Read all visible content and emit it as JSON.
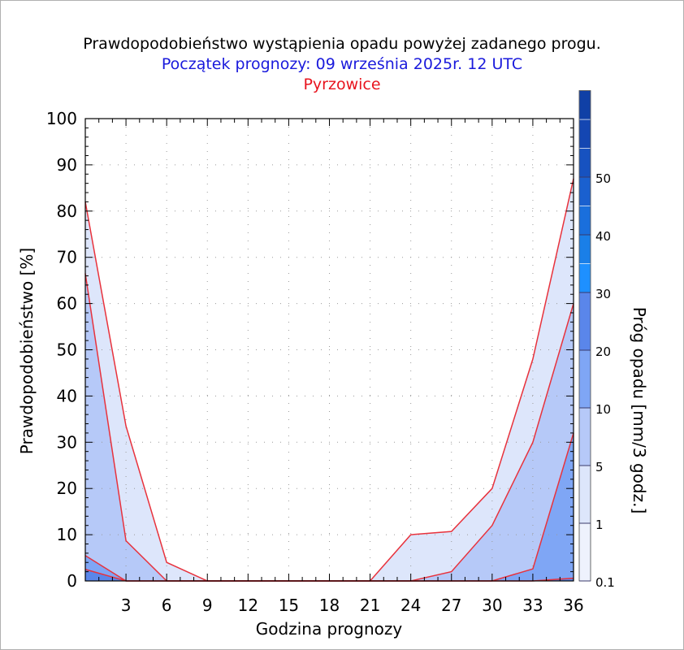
{
  "titles": {
    "line1": "Prawdopodobieństwo wystąpienia opadu powyżej zadanego progu.",
    "line2": "Początek prognozy: 09 września 2025r. 12 UTC",
    "line3": "Pyrzowice"
  },
  "chart_data": {
    "type": "area",
    "xlabel": "Godzina prognozy",
    "ylabel": "Prawdopodobieństwo [%]",
    "colorbar_label": "Próg opadu [mm/3 godz.]",
    "xlim": [
      0,
      36
    ],
    "ylim": [
      0,
      100
    ],
    "x": [
      0,
      3,
      6,
      9,
      12,
      15,
      18,
      21,
      24,
      27,
      30,
      33,
      36
    ],
    "x_tick_labels": [
      "3",
      "6",
      "9",
      "12",
      "15",
      "18",
      "21",
      "24",
      "27",
      "30",
      "33",
      "36"
    ],
    "x_tick_values": [
      3,
      6,
      9,
      12,
      15,
      18,
      21,
      24,
      27,
      30,
      33,
      36
    ],
    "y_ticks": [
      0,
      10,
      20,
      30,
      40,
      50,
      60,
      70,
      80,
      90,
      100
    ],
    "grid": true,
    "series": [
      {
        "threshold": 0.1,
        "color": "#dde6fb",
        "values": [
          82,
          33.5,
          4,
          0,
          0,
          0,
          0,
          0,
          10,
          10.7,
          20,
          48,
          87
        ]
      },
      {
        "threshold": 1,
        "color": "#b6c9f8",
        "values": [
          66.5,
          8.7,
          0,
          0,
          0,
          0,
          0,
          0,
          0,
          2,
          12,
          30,
          60
        ]
      },
      {
        "threshold": 5,
        "color": "#7fa6f5",
        "values": [
          5.5,
          0,
          0,
          0,
          0,
          0,
          0,
          0,
          0,
          0,
          0,
          2.6,
          32
        ]
      },
      {
        "threshold": 10,
        "color": "#5a86ea",
        "values": [
          2.5,
          0,
          0,
          0,
          0,
          0,
          0,
          0,
          0,
          0,
          0,
          0,
          0.6
        ]
      }
    ],
    "colorbar": {
      "labels": [
        "0.1",
        "1",
        "5",
        "10",
        "20",
        "30",
        "40",
        "50"
      ],
      "levels": [
        0.1,
        1,
        5,
        10,
        20,
        25,
        30,
        35,
        40,
        45,
        50,
        55,
        60
      ],
      "colors": [
        "#eef2fd",
        "#dde6fb",
        "#b6c9f8",
        "#7fa6f5",
        "#5a86ea",
        "#1e90ff",
        "#1a7fe8",
        "#1a6fdc",
        "#1a60cf",
        "#1752c0",
        "#1446b2",
        "#1040a6"
      ]
    },
    "line_color": "#e8323c"
  }
}
